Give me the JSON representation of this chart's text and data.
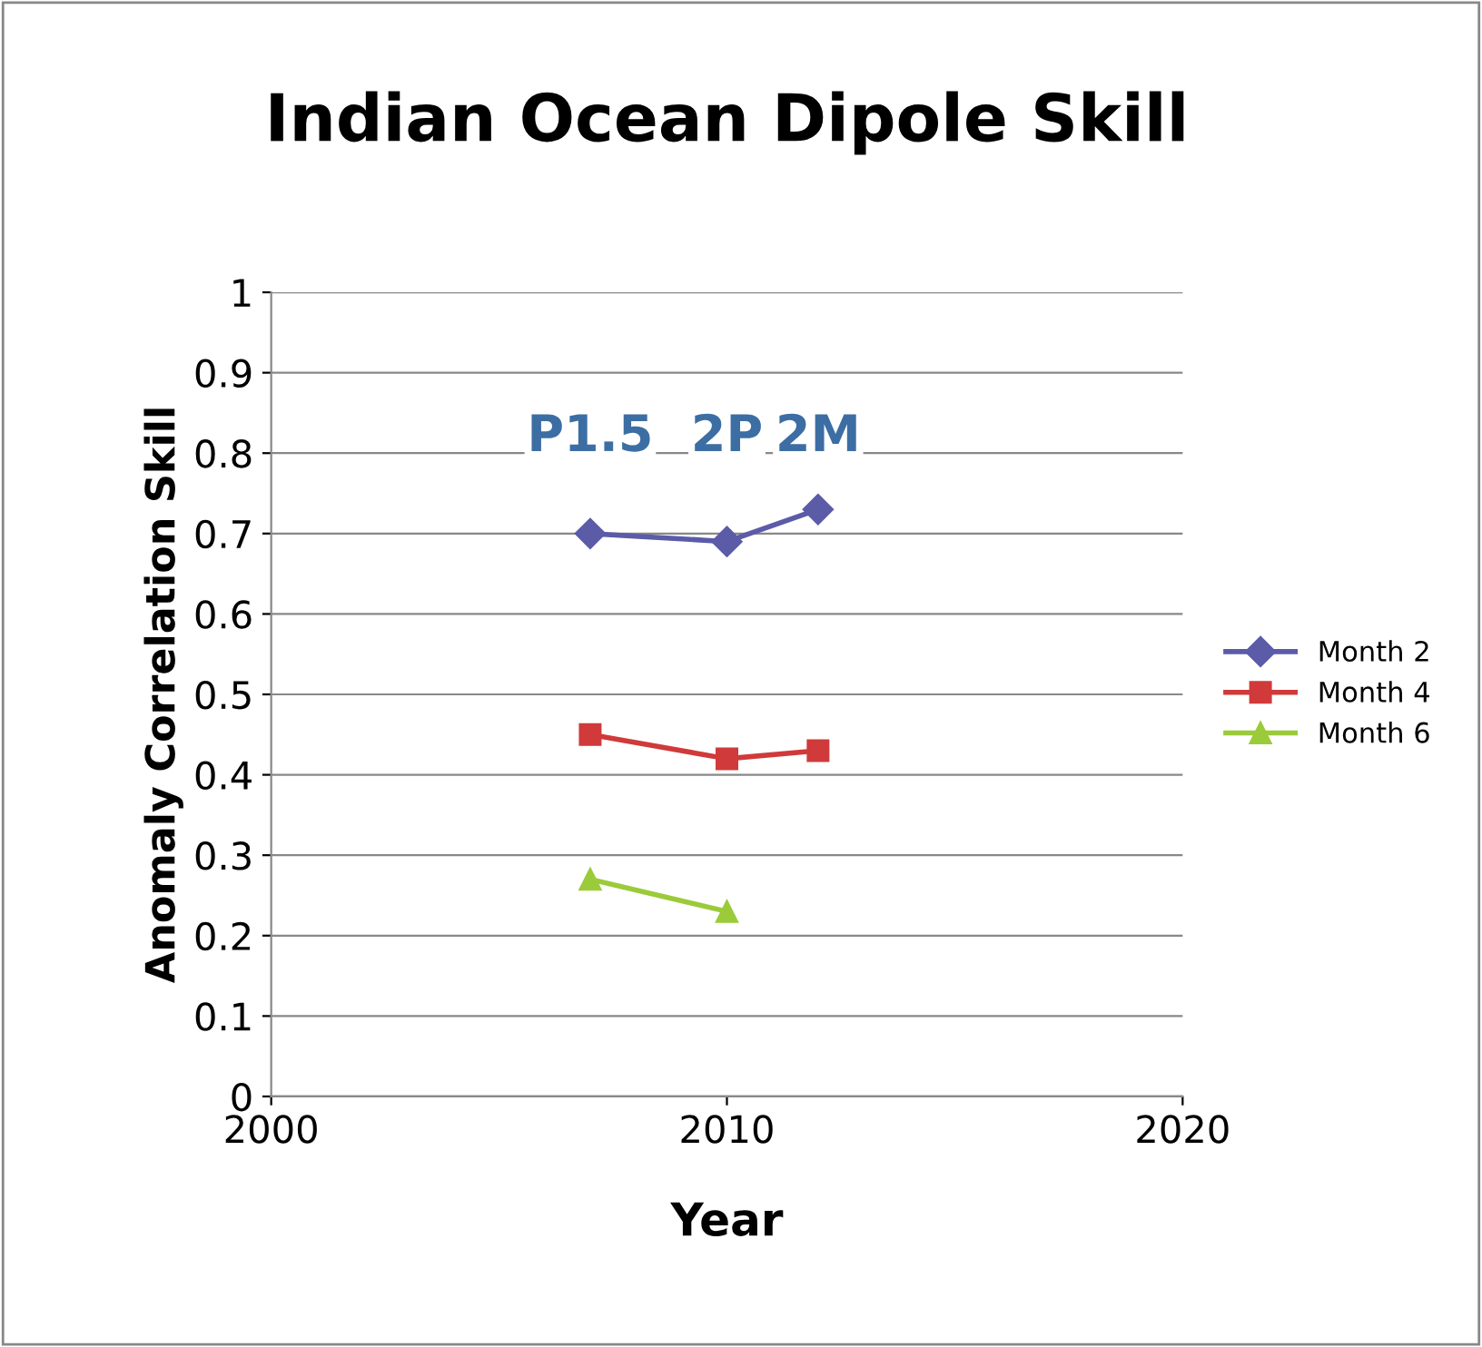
{
  "chart_data": {
    "type": "line",
    "title": "Indian Ocean Dipole Skill",
    "xlabel": "Year",
    "ylabel": "Anomaly Correlation Skill",
    "xlim": [
      2000,
      2020
    ],
    "xticks": [
      2000,
      2010,
      2020
    ],
    "ylim": [
      0,
      1
    ],
    "yticks": [
      0,
      0.1,
      0.2,
      0.3,
      0.4,
      0.5,
      0.6,
      0.7,
      0.8,
      0.9,
      1
    ],
    "grid": "y",
    "legend": "right",
    "series": [
      {
        "name": "Month 2",
        "color": "#5b5ba8",
        "marker": "diamond",
        "x": [
          2007,
          2010,
          2012
        ],
        "values": [
          0.7,
          0.69,
          0.73
        ]
      },
      {
        "name": "Month 4",
        "color": "#d03a3a",
        "marker": "square",
        "x": [
          2007,
          2010,
          2012
        ],
        "values": [
          0.45,
          0.42,
          0.43
        ]
      },
      {
        "name": "Month 6",
        "color": "#9bcb3a",
        "marker": "triangle",
        "x": [
          2007,
          2010
        ],
        "values": [
          0.27,
          0.23
        ]
      }
    ],
    "annotations": [
      "P1.5",
      "2P",
      "2M"
    ]
  }
}
